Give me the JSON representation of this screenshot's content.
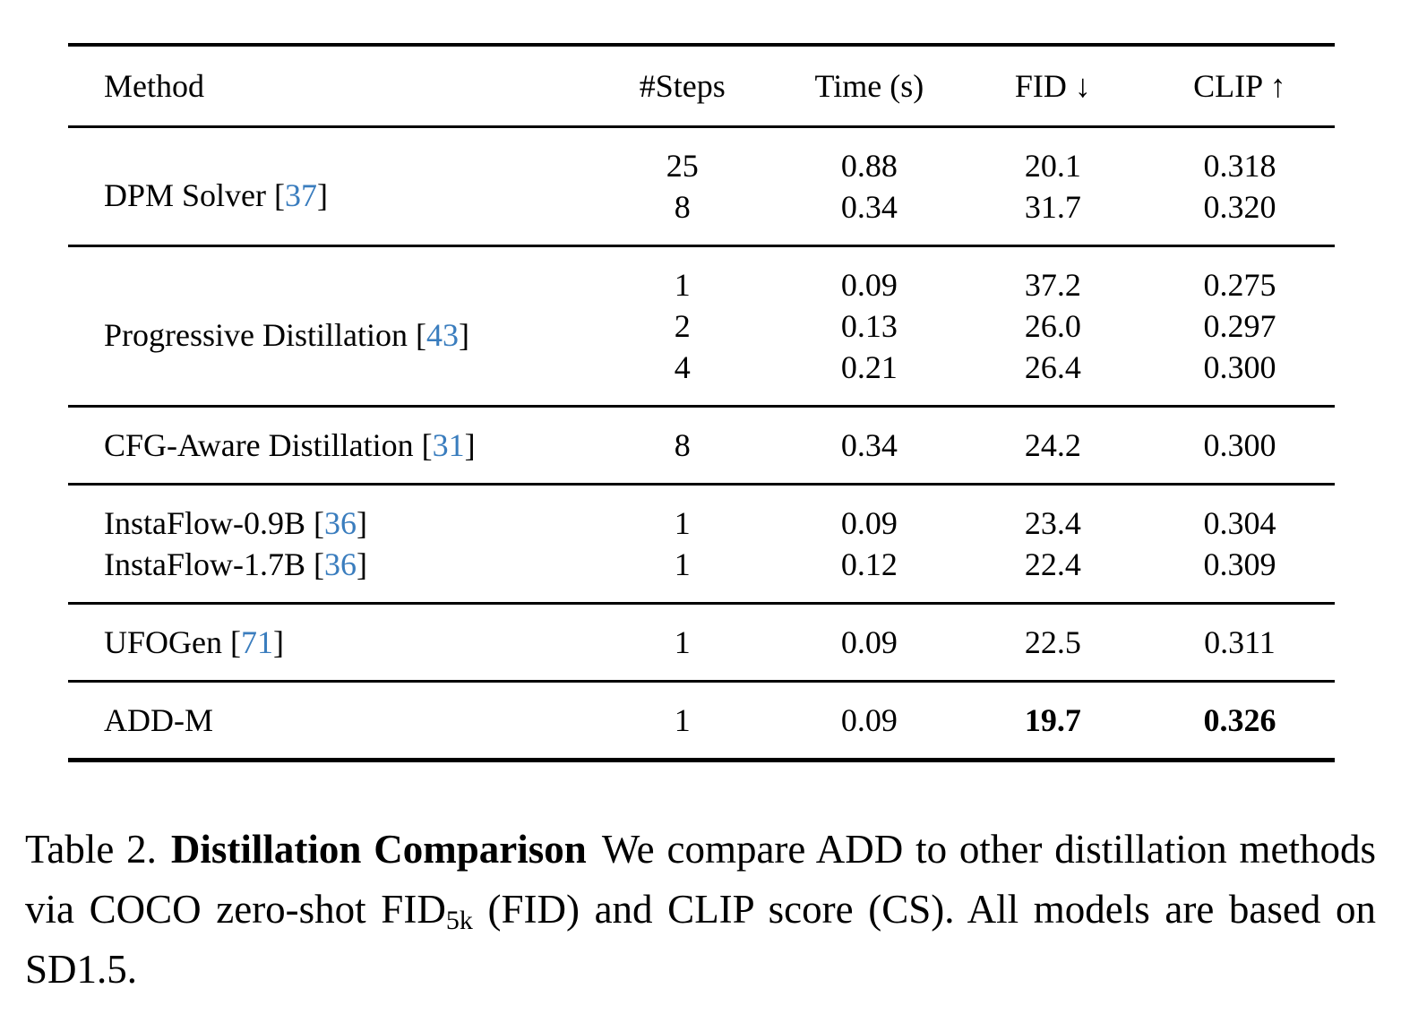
{
  "colors": {
    "citation": "#3a7dbe",
    "text": "#000000",
    "background": "#ffffff"
  },
  "table": {
    "headers": [
      "Method",
      "#Steps",
      "Time (s)",
      "FID ↓",
      "CLIP ↑"
    ],
    "groups": [
      {
        "method": "DPM Solver",
        "cite": "37",
        "rows": [
          {
            "steps": "25",
            "time": "0.88",
            "fid": "20.1",
            "clip": "0.318"
          },
          {
            "steps": "8",
            "time": "0.34",
            "fid": "31.7",
            "clip": "0.320"
          }
        ]
      },
      {
        "method": "Progressive Distillation",
        "cite": "43",
        "rows": [
          {
            "steps": "1",
            "time": "0.09",
            "fid": "37.2",
            "clip": "0.275"
          },
          {
            "steps": "2",
            "time": "0.13",
            "fid": "26.0",
            "clip": "0.297"
          },
          {
            "steps": "4",
            "time": "0.21",
            "fid": "26.4",
            "clip": "0.300"
          }
        ]
      },
      {
        "method": "CFG-Aware Distillation",
        "cite": "31",
        "rows": [
          {
            "steps": "8",
            "time": "0.34",
            "fid": "24.2",
            "clip": "0.300"
          }
        ]
      },
      {
        "rows": [
          {
            "method": "InstaFlow-0.9B",
            "cite": "36",
            "steps": "1",
            "time": "0.09",
            "fid": "23.4",
            "clip": "0.304"
          },
          {
            "method": "InstaFlow-1.7B",
            "cite": "36",
            "steps": "1",
            "time": "0.12",
            "fid": "22.4",
            "clip": "0.309"
          }
        ]
      },
      {
        "method": "UFOGen",
        "cite": "71",
        "rows": [
          {
            "steps": "1",
            "time": "0.09",
            "fid": "22.5",
            "clip": "0.311"
          }
        ]
      },
      {
        "method": "ADD-M",
        "rows": [
          {
            "steps": "1",
            "time": "0.09",
            "fid": "19.7",
            "clip": "0.326",
            "bold": [
              "fid",
              "clip"
            ]
          }
        ]
      }
    ]
  },
  "chart_data": {
    "type": "table",
    "title": "Table 2. Distillation Comparison",
    "columns": [
      "Method",
      "#Steps",
      "Time (s)",
      "FID",
      "CLIP"
    ],
    "rows": [
      [
        "DPM Solver [37]",
        25,
        0.88,
        20.1,
        0.318
      ],
      [
        "DPM Solver [37]",
        8,
        0.34,
        31.7,
        0.32
      ],
      [
        "Progressive Distillation [43]",
        1,
        0.09,
        37.2,
        0.275
      ],
      [
        "Progressive Distillation [43]",
        2,
        0.13,
        26.0,
        0.297
      ],
      [
        "Progressive Distillation [43]",
        4,
        0.21,
        26.4,
        0.3
      ],
      [
        "CFG-Aware Distillation [31]",
        8,
        0.34,
        24.2,
        0.3
      ],
      [
        "InstaFlow-0.9B [36]",
        1,
        0.09,
        23.4,
        0.304
      ],
      [
        "InstaFlow-1.7B [36]",
        1,
        0.12,
        22.4,
        0.309
      ],
      [
        "UFOGen [71]",
        1,
        0.09,
        22.5,
        0.311
      ],
      [
        "ADD-M",
        1,
        0.09,
        19.7,
        0.326
      ]
    ]
  },
  "caption": {
    "label": "Table 2.",
    "title": "Distillation Comparison",
    "body_before_sub": "We compare ADD to other distillation methods via COCO zero-shot FID",
    "sub": "5k",
    "body_after_sub": "(FID) and CLIP score (CS). All models are based on SD1.5."
  }
}
